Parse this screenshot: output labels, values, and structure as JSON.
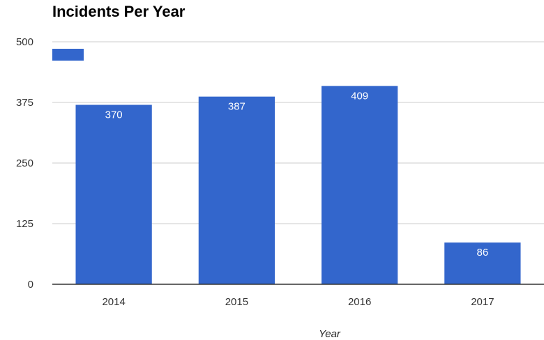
{
  "chart_data": {
    "type": "bar",
    "title": "Incidents Per Year",
    "xlabel": "Year",
    "ylabel": "",
    "categories": [
      "2014",
      "2015",
      "2016",
      "2017"
    ],
    "series": [
      {
        "values": [
          370,
          387,
          409,
          86
        ]
      }
    ],
    "data_labels": [
      "370",
      "387",
      "409",
      "86"
    ],
    "ylim": [
      0,
      500
    ],
    "yticks": [
      0,
      125,
      250,
      375,
      500
    ],
    "ytick_labels": [
      "0",
      "125",
      "250",
      "375",
      "500"
    ],
    "grid": true,
    "legend": "top-left",
    "bar_color": "#3366cc",
    "grid_color": "#cccccc",
    "axis_color": "#333333"
  }
}
